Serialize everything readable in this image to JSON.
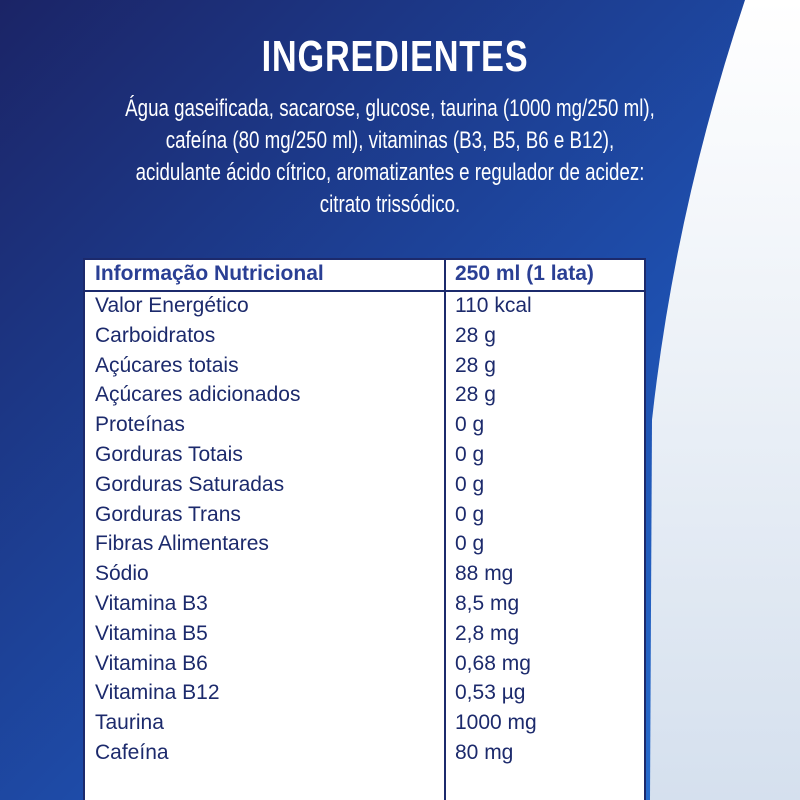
{
  "header": {
    "title": "INGREDIENTES",
    "ingredients": [
      "Água gaseificada, sacarose, glucose, taurina (1000 mg/250 ml),",
      "cafeína (80 mg/250 ml), vitaminas (B3, B5, B6 e B12),",
      "acidulante ácido cítrico, aromatizantes e regulador de acidez:",
      "citrato trissódico."
    ]
  },
  "table": {
    "columns": [
      "Informação Nutricional",
      "250 ml (1 lata)"
    ],
    "rows": [
      [
        "Valor Energético",
        "110 kcal"
      ],
      [
        "Carboidratos",
        "28 g"
      ],
      [
        "Açúcares totais",
        "28 g"
      ],
      [
        "Açúcares adicionados",
        "28 g"
      ],
      [
        "Proteínas",
        "0 g"
      ],
      [
        "Gorduras Totais",
        "0 g"
      ],
      [
        "Gorduras Saturadas",
        "0 g"
      ],
      [
        "Gorduras Trans",
        "0 g"
      ],
      [
        "Fibras Alimentares",
        "0 g"
      ],
      [
        "Sódio",
        "88 mg"
      ],
      [
        "Vitamina B3",
        "8,5 mg"
      ],
      [
        "Vitamina B5",
        "2,8 mg"
      ],
      [
        "Vitamina B6",
        "0,68 mg"
      ],
      [
        "Vitamina B12",
        "0,53 µg"
      ],
      [
        "Taurina",
        "1000 mg"
      ],
      [
        "Cafeína",
        "80 mg"
      ]
    ]
  }
}
